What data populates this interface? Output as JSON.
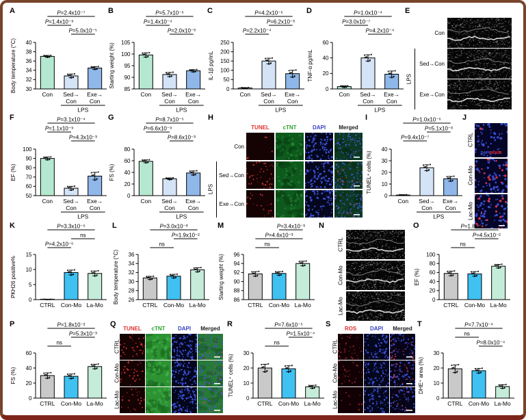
{
  "figure": {
    "border_color": "#78442a",
    "background": "#ffffff",
    "group_colors_lps": [
      "#b5e8d0",
      "#d4e3f6",
      "#8fb7e9"
    ],
    "group_colors_mo": [
      "#c9c9c9",
      "#3fc1f2",
      "#c4ecd9"
    ]
  },
  "chart_data": [
    {
      "id": "A",
      "type": "bar",
      "ylabel": "Body temperature (°C)",
      "ylim": [
        30,
        40
      ],
      "yticks": [
        30,
        32,
        34,
        36,
        38,
        40
      ],
      "categories": [
        [
          "Con"
        ],
        [
          "Sed→",
          "Con"
        ],
        [
          "Exe→",
          "Con"
        ]
      ],
      "values": [
        37.0,
        32.8,
        34.5
      ],
      "errors": [
        0.2,
        0.4,
        0.3
      ],
      "colors": [
        "#b5e8d0",
        "#d4e3f6",
        "#8fb7e9"
      ],
      "group": {
        "label": "LPS",
        "span": [
          1,
          2
        ]
      },
      "sig": [
        {
          "pair": [
            0,
            2
          ],
          "row": 0,
          "label": "P=2.4x10⁻⁷"
        },
        {
          "pair": [
            0,
            1
          ],
          "row": 1,
          "label": "P=1.4x10⁻⁹"
        },
        {
          "pair": [
            1,
            2
          ],
          "row": 2,
          "label": "P=5.0x10⁻⁵"
        }
      ]
    },
    {
      "id": "B",
      "type": "bar",
      "ylabel": "Starting weight (%)",
      "ylim": [
        85,
        105
      ],
      "yticks": [
        85,
        90,
        95,
        100,
        105
      ],
      "categories": [
        [
          "Con"
        ],
        [
          "Sed→",
          "Con"
        ],
        [
          "Exe→",
          "Con"
        ]
      ],
      "values": [
        99.6,
        91.2,
        92.8
      ],
      "errors": [
        0.9,
        0.9,
        0.5
      ],
      "colors": [
        "#b5e8d0",
        "#d4e3f6",
        "#8fb7e9"
      ],
      "group": {
        "label": "LPS",
        "span": [
          1,
          2
        ]
      },
      "sig": [
        {
          "pair": [
            0,
            2
          ],
          "row": 0,
          "label": "P=5.7x10⁻⁶"
        },
        {
          "pair": [
            0,
            1
          ],
          "row": 1,
          "label": "P=1.4x10⁻⁴"
        },
        {
          "pair": [
            1,
            2
          ],
          "row": 2,
          "label": "P=2.0x10⁻³"
        }
      ]
    },
    {
      "id": "C",
      "type": "bar",
      "ylabel": "IL-1β pg/mL",
      "ylim": [
        0,
        250
      ],
      "yticks": [
        0,
        50,
        100,
        150,
        200,
        250
      ],
      "categories": [
        [
          "Con"
        ],
        [
          "Sed→",
          "Con"
        ],
        [
          "Exe→",
          "Con"
        ]
      ],
      "values": [
        5,
        150,
        82
      ],
      "errors": [
        2,
        15,
        18
      ],
      "colors": [
        "#b5e8d0",
        "#d4e3f6",
        "#8fb7e9"
      ],
      "group": {
        "label": "LPS",
        "span": [
          1,
          2
        ]
      },
      "sig": [
        {
          "pair": [
            0,
            2
          ],
          "row": 0,
          "label": "P=4.2x10⁻⁶"
        },
        {
          "pair": [
            1,
            2
          ],
          "row": 1,
          "label": "P=6.2x10⁻³"
        },
        {
          "pair": [
            0,
            1
          ],
          "row": 2,
          "label": "P=2.2x10⁻⁴"
        }
      ]
    },
    {
      "id": "D",
      "type": "bar",
      "ylabel": "TNF-α pg/mL",
      "ylim": [
        0,
        60
      ],
      "yticks": [
        0,
        20,
        40,
        60
      ],
      "categories": [
        [
          "Con"
        ],
        [
          "Sed→",
          "Con"
        ],
        [
          "Exe→",
          "Con"
        ]
      ],
      "values": [
        3,
        40,
        19
      ],
      "errors": [
        1,
        4,
        4
      ],
      "colors": [
        "#b5e8d0",
        "#d4e3f6",
        "#8fb7e9"
      ],
      "group": {
        "label": "LPS",
        "span": [
          1,
          2
        ]
      },
      "sig": [
        {
          "pair": [
            0,
            2
          ],
          "row": 0,
          "label": "P=1.0x10⁻⁴"
        },
        {
          "pair": [
            0,
            1
          ],
          "row": 1,
          "label": "P=3.0x10⁻⁷"
        },
        {
          "pair": [
            1,
            2
          ],
          "row": 2,
          "label": "P=4.2x10⁻⁴"
        }
      ]
    },
    {
      "id": "F",
      "type": "bar",
      "ylabel": "EF (%)",
      "ylim": [
        50,
        100
      ],
      "yticks": [
        50,
        60,
        70,
        80,
        90,
        100
      ],
      "categories": [
        [
          "Con"
        ],
        [
          "Sed→",
          "Con"
        ],
        [
          "Exe→",
          "Con"
        ]
      ],
      "values": [
        90,
        58,
        71
      ],
      "errors": [
        1.5,
        2,
        4
      ],
      "colors": [
        "#b5e8d0",
        "#d4e3f6",
        "#8fb7e9"
      ],
      "group": {
        "label": "LPS",
        "span": [
          1,
          2
        ]
      },
      "sig": [
        {
          "pair": [
            0,
            2
          ],
          "row": 0,
          "label": "P=3.1x10⁻⁴"
        },
        {
          "pair": [
            0,
            1
          ],
          "row": 1,
          "label": "P=1.1x10⁻⁹"
        },
        {
          "pair": [
            1,
            2
          ],
          "row": 2,
          "label": "P=4.3x10⁻³"
        }
      ]
    },
    {
      "id": "G",
      "type": "bar",
      "ylabel": "FS (%)",
      "ylim": [
        0,
        80
      ],
      "yticks": [
        0,
        20,
        40,
        60,
        80
      ],
      "categories": [
        [
          "Con"
        ],
        [
          "Sed→",
          "Con"
        ],
        [
          "Exe→",
          "Con"
        ]
      ],
      "values": [
        59,
        29,
        39
      ],
      "errors": [
        2.5,
        1.5,
        3.5
      ],
      "colors": [
        "#b5e8d0",
        "#d4e3f6",
        "#8fb7e9"
      ],
      "group": {
        "label": "LPS",
        "span": [
          1,
          2
        ]
      },
      "sig": [
        {
          "pair": [
            0,
            2
          ],
          "row": 0,
          "label": "P=8.7x10⁻⁵"
        },
        {
          "pair": [
            0,
            1
          ],
          "row": 1,
          "label": "P=6.6x10⁻⁹"
        },
        {
          "pair": [
            1,
            2
          ],
          "row": 2,
          "label": "P=8.6x10⁻³"
        }
      ]
    },
    {
      "id": "I",
      "type": "bar",
      "ylabel": "TUNEL⁺ cells (%)",
      "ylim": [
        0,
        40
      ],
      "yticks": [
        0,
        10,
        20,
        30,
        40
      ],
      "categories": [
        [
          "Con"
        ],
        [
          "Sed→",
          "Con"
        ],
        [
          "Exe→",
          "Con"
        ]
      ],
      "values": [
        0.5,
        24,
        14.5
      ],
      "errors": [
        0.3,
        2.5,
        2
      ],
      "colors": [
        "#b5e8d0",
        "#d4e3f6",
        "#8fb7e9"
      ],
      "group": {
        "label": "LPS",
        "span": [
          1,
          2
        ]
      },
      "sig": [
        {
          "pair": [
            0,
            2
          ],
          "row": 0,
          "label": "P=1.0x10⁻⁶"
        },
        {
          "pair": [
            1,
            2
          ],
          "row": 1,
          "label": "P=5.1x10⁻³"
        },
        {
          "pair": [
            0,
            1
          ],
          "row": 2,
          "label": "P=9.4x10⁻⁷"
        }
      ]
    },
    {
      "id": "K",
      "type": "bar",
      "ylabel": "PKH26 positive%",
      "ylim": [
        0,
        15
      ],
      "yticks": [
        0,
        5,
        10,
        15
      ],
      "categories": [
        [
          "CTRL"
        ],
        [
          "Con-Mo"
        ],
        [
          "La-Mo"
        ]
      ],
      "values": [
        0.05,
        9.0,
        8.7
      ],
      "errors": [
        0.05,
        0.8,
        0.8
      ],
      "colors": [
        "#c9c9c9",
        "#3fc1f2",
        "#c4ecd9"
      ],
      "sig": [
        {
          "pair": [
            0,
            2
          ],
          "row": 0,
          "label": "P=3.3x10⁻⁶"
        },
        {
          "pair": [
            1,
            2
          ],
          "row": 1,
          "label": "ns"
        },
        {
          "pair": [
            0,
            1
          ],
          "row": 2,
          "label": "P=4.2x10⁻⁶"
        }
      ]
    },
    {
      "id": "L",
      "type": "bar",
      "ylabel": "Body temperature (°C)",
      "ylim": [
        26,
        36
      ],
      "yticks": [
        26,
        28,
        30,
        32,
        34,
        36
      ],
      "categories": [
        [
          "CTRL"
        ],
        [
          "Con-Mo"
        ],
        [
          "La-Mo"
        ]
      ],
      "values": [
        30.8,
        31.2,
        32.6
      ],
      "errors": [
        0.35,
        0.4,
        0.45
      ],
      "colors": [
        "#c9c9c9",
        "#3fc1f2",
        "#c4ecd9"
      ],
      "sig": [
        {
          "pair": [
            0,
            2
          ],
          "row": 0,
          "label": "P=3.0x10⁻³"
        },
        {
          "pair": [
            1,
            2
          ],
          "row": 1,
          "label": "P=1.9x10⁻²"
        },
        {
          "pair": [
            0,
            1
          ],
          "row": 2,
          "label": "ns"
        }
      ]
    },
    {
      "id": "M",
      "type": "bar",
      "ylabel": "Starting weight (%)",
      "ylim": [
        86,
        96
      ],
      "yticks": [
        86,
        88,
        90,
        92,
        94,
        96
      ],
      "categories": [
        [
          "CTRL"
        ],
        [
          "Con-Mo"
        ],
        [
          "La-Mo"
        ]
      ],
      "values": [
        91.7,
        91.8,
        94.0
      ],
      "errors": [
        0.5,
        0.4,
        0.5
      ],
      "colors": [
        "#c9c9c9",
        "#3fc1f2",
        "#c4ecd9"
      ],
      "sig": [
        {
          "pair": [
            1,
            2
          ],
          "row": 0,
          "label": "P=3.4x10⁻³"
        },
        {
          "pair": [
            0,
            2
          ],
          "row": 1,
          "label": "P=4.6x10⁻³"
        },
        {
          "pair": [
            0,
            1
          ],
          "row": 2,
          "label": "ns"
        }
      ]
    },
    {
      "id": "O",
      "type": "bar",
      "ylabel": "EF (%)",
      "ylim": [
        0,
        100
      ],
      "yticks": [
        0,
        20,
        40,
        60,
        80,
        100
      ],
      "categories": [
        [
          "CTRL"
        ],
        [
          "Con-Mo"
        ],
        [
          "La-Mo"
        ]
      ],
      "values": [
        58,
        57,
        74
      ],
      "errors": [
        5,
        5,
        4
      ],
      "colors": [
        "#c9c9c9",
        "#3fc1f2",
        "#c4ecd9"
      ],
      "sig": [
        {
          "pair": [
            0,
            2
          ],
          "row": 0,
          "label": "P=1.8x10⁻²"
        },
        {
          "pair": [
            1,
            2
          ],
          "row": 1,
          "label": "P=4.5x10⁻²"
        },
        {
          "pair": [
            0,
            1
          ],
          "row": 2,
          "label": "ns"
        }
      ]
    },
    {
      "id": "P",
      "type": "bar",
      "ylabel": "FS (%)",
      "ylim": [
        0,
        60
      ],
      "yticks": [
        0,
        20,
        40,
        60
      ],
      "categories": [
        [
          "CTRL"
        ],
        [
          "Con-Mo"
        ],
        [
          "La-Mo"
        ]
      ],
      "values": [
        30,
        29,
        42
      ],
      "errors": [
        3.5,
        3,
        3
      ],
      "colors": [
        "#c9c9c9",
        "#3fc1f2",
        "#c4ecd9"
      ],
      "sig": [
        {
          "pair": [
            0,
            2
          ],
          "row": 0,
          "label": "P=1.8x10⁻²"
        },
        {
          "pair": [
            1,
            2
          ],
          "row": 1,
          "label": "P=5.3x10⁻³"
        },
        {
          "pair": [
            0,
            1
          ],
          "row": 2,
          "label": "ns"
        }
      ]
    },
    {
      "id": "R",
      "type": "bar",
      "ylabel": "TUNEL⁺ cells (%)",
      "ylim": [
        0,
        30
      ],
      "yticks": [
        0,
        10,
        20,
        30
      ],
      "categories": [
        [
          "CTRL"
        ],
        [
          "Con-Mo"
        ],
        [
          "La-Mo"
        ]
      ],
      "values": [
        20,
        19.5,
        7.5
      ],
      "errors": [
        2.5,
        2,
        1
      ],
      "colors": [
        "#c9c9c9",
        "#3fc1f2",
        "#c4ecd9"
      ],
      "sig": [
        {
          "pair": [
            0,
            2
          ],
          "row": 0,
          "label": "P=7.6x10⁻⁵"
        },
        {
          "pair": [
            1,
            2
          ],
          "row": 1,
          "label": "P=1.5x10⁻⁴"
        },
        {
          "pair": [
            0,
            1
          ],
          "row": 2,
          "label": "ns"
        }
      ]
    },
    {
      "id": "T",
      "type": "bar",
      "ylabel": "DHE⁺ area (%)",
      "ylim": [
        0,
        30
      ],
      "yticks": [
        0,
        10,
        20,
        30
      ],
      "categories": [
        [
          "CTRL"
        ],
        [
          "Con-Mo"
        ],
        [
          "La-Mo"
        ]
      ],
      "values": [
        19.5,
        18.2,
        7.7
      ],
      "errors": [
        2.5,
        1.5,
        1.2
      ],
      "colors": [
        "#c9c9c9",
        "#3fc1f2",
        "#c4ecd9"
      ],
      "sig": [
        {
          "pair": [
            0,
            2
          ],
          "row": 0,
          "label": "P=7.7x10⁻⁴"
        },
        {
          "pair": [
            0,
            1
          ],
          "row": 1,
          "label": "ns"
        },
        {
          "pair": [
            1,
            2
          ],
          "row": 2,
          "label": "P=8.0x10⁻⁴"
        }
      ]
    }
  ],
  "image_panels": [
    {
      "id": "E",
      "type": "echo",
      "rows": [
        "Con",
        "Sed→Con",
        "Exe→Con"
      ],
      "label_rotation": "horizontal",
      "bracket": {
        "label": "LPS",
        "from": 1,
        "to": 2
      }
    },
    {
      "id": "H",
      "type": "micro",
      "col_headers": [
        {
          "text": "TUNEL",
          "color": "#e03131"
        },
        {
          "text": "cTNT",
          "color": "#2aa12e"
        },
        {
          "text": "DAPI",
          "color": "#3743c5"
        },
        {
          "text": "Merged",
          "color": "#1a1a1a"
        }
      ],
      "channels": [
        "tunel",
        "ctnt",
        "dapi",
        "merged"
      ],
      "rows": [
        "Con",
        "Sed→Con",
        "Exe→Con"
      ],
      "label_rotation": "horizontal",
      "bracket": {
        "label": "LPS",
        "from": 1,
        "to": 2
      }
    },
    {
      "id": "J",
      "type": "micro",
      "channels": [
        "pkh"
      ],
      "rows": [
        "CTRL",
        "Con-Mo",
        "Lac-Mo"
      ],
      "label_rotation": "vertical",
      "inset_labels": [
        {
          "text": "DAPI",
          "color": "#4a5ce8"
        },
        {
          "text": "PKH26",
          "color": "#ff2d2d"
        }
      ]
    },
    {
      "id": "N",
      "type": "echo",
      "rows": [
        "CTRL",
        "Con-Mo",
        "Lac-Mo"
      ],
      "label_rotation": "vertical"
    },
    {
      "id": "Q",
      "type": "micro",
      "col_headers": [
        {
          "text": "TUNEL",
          "color": "#e03131"
        },
        {
          "text": "cTNT",
          "color": "#2aa12e"
        },
        {
          "text": "DAPI",
          "color": "#3743c5"
        },
        {
          "text": "Merged",
          "color": "#1a1a1a"
        }
      ],
      "channels": [
        "tunel",
        "ctnt",
        "dapi",
        "merged"
      ],
      "rows": [
        "CTRL",
        "Con-Mo",
        "Lac-Mo"
      ],
      "label_rotation": "vertical"
    },
    {
      "id": "S",
      "type": "micro",
      "col_headers": [
        {
          "text": "ROS",
          "color": "#e03131"
        },
        {
          "text": "DAPI",
          "color": "#3743c5"
        },
        {
          "text": "Merged",
          "color": "#1a1a1a"
        }
      ],
      "channels": [
        "ros",
        "dapi",
        "merged"
      ],
      "rows": [
        "CTRL",
        "Con-Mo",
        "Lac-Mo"
      ],
      "label_rotation": "vertical"
    }
  ]
}
